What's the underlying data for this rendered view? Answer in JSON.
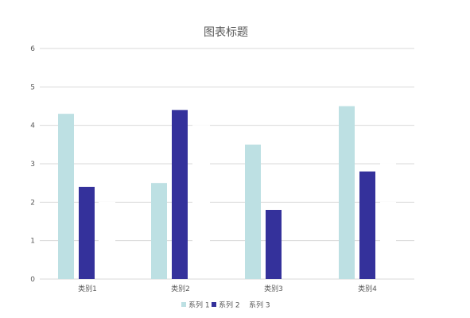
{
  "chart_data": {
    "type": "bar",
    "title": "图表标题",
    "categories": [
      "类别1",
      "类别2",
      "类别3",
      "类别4"
    ],
    "series": [
      {
        "name": "系列 1",
        "values": [
          4.3,
          2.5,
          3.5,
          4.5
        ],
        "color": "#bde0e3"
      },
      {
        "name": "系列 2",
        "values": [
          2.4,
          4.4,
          1.8,
          2.8
        ],
        "color": "#34319b"
      },
      {
        "name": "系列 3",
        "values": [
          0,
          0,
          0,
          0
        ],
        "color": "#ffffff"
      }
    ],
    "ylim": [
      0,
      6
    ],
    "yticks": [
      0,
      1,
      2,
      3,
      4,
      5,
      6
    ],
    "grid": true,
    "legend_position": "bottom",
    "xlabel": "",
    "ylabel": ""
  }
}
